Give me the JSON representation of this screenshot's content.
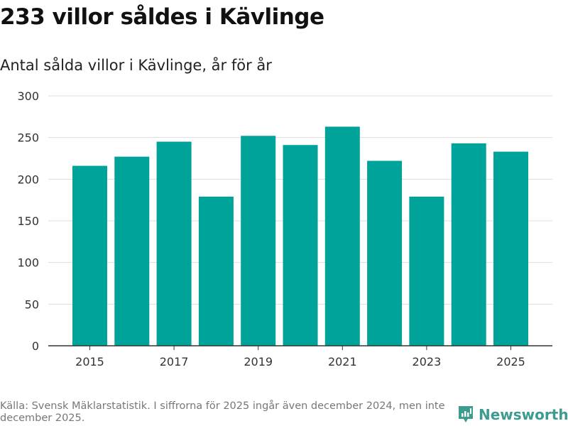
{
  "title": "233 villor såldes i Kävlinge",
  "subtitle": "Antal sålda villor i Kävlinge, år för år",
  "source": "Källa: Svensk Mäklarstatistik. I siffrorna för 2025 ingår även december 2024, men inte december 2025.",
  "brand": "Newsworthy",
  "colors": {
    "bar": "#00a39a",
    "grid": "#dddddd",
    "brand": "#3d9b8f"
  },
  "chart_data": {
    "type": "bar",
    "title": "Antal sålda villor i Kävlinge, år för år",
    "categories": [
      "2015",
      "2016",
      "2017",
      "2018",
      "2019",
      "2020",
      "2021",
      "2022",
      "2023",
      "2024",
      "2025"
    ],
    "values": [
      216,
      227,
      245,
      179,
      252,
      241,
      263,
      222,
      179,
      243,
      233
    ],
    "xticks": [
      "2015",
      "2017",
      "2019",
      "2021",
      "2023",
      "2025"
    ],
    "yticks": [
      0,
      50,
      100,
      150,
      200,
      250,
      300
    ],
    "ylim": [
      0,
      300
    ],
    "grid": true,
    "xlabel": "",
    "ylabel": ""
  }
}
